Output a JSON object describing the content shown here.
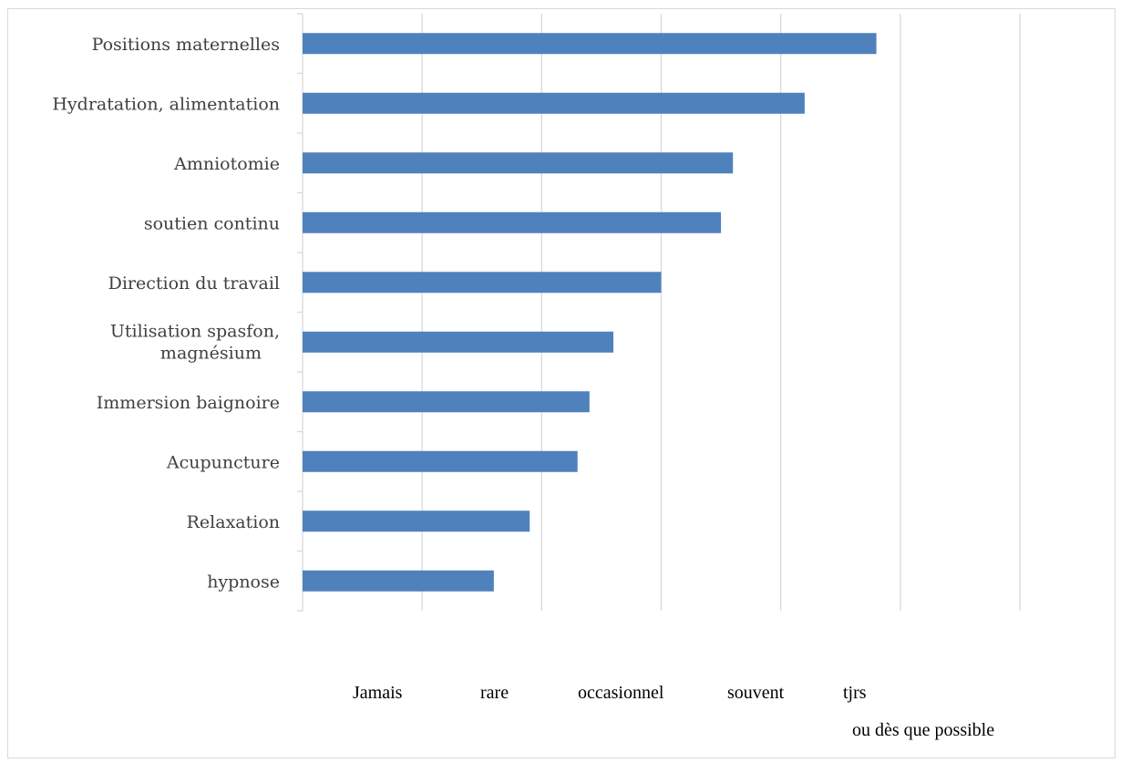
{
  "chart_data": {
    "type": "bar",
    "orientation": "horizontal",
    "categories": [
      "Positions maternelles",
      "Hydratation, alimentation",
      "Amniotomie",
      "soutien continu",
      "Direction du travail",
      "Utilisation spasfon, magnésium",
      "Immersion baignoire",
      "Acupuncture",
      "Relaxation",
      "hypnose"
    ],
    "values": [
      4.8,
      4.2,
      3.6,
      3.5,
      3.0,
      2.6,
      2.4,
      2.3,
      1.9,
      1.6
    ],
    "xlim": [
      0,
      6
    ],
    "grid": true,
    "bar_color": "#4f81bd",
    "scale_labels": [
      "Jamais",
      "rare",
      "occasionnel",
      "souvent",
      "tjrs",
      "ou dès que possible"
    ]
  }
}
